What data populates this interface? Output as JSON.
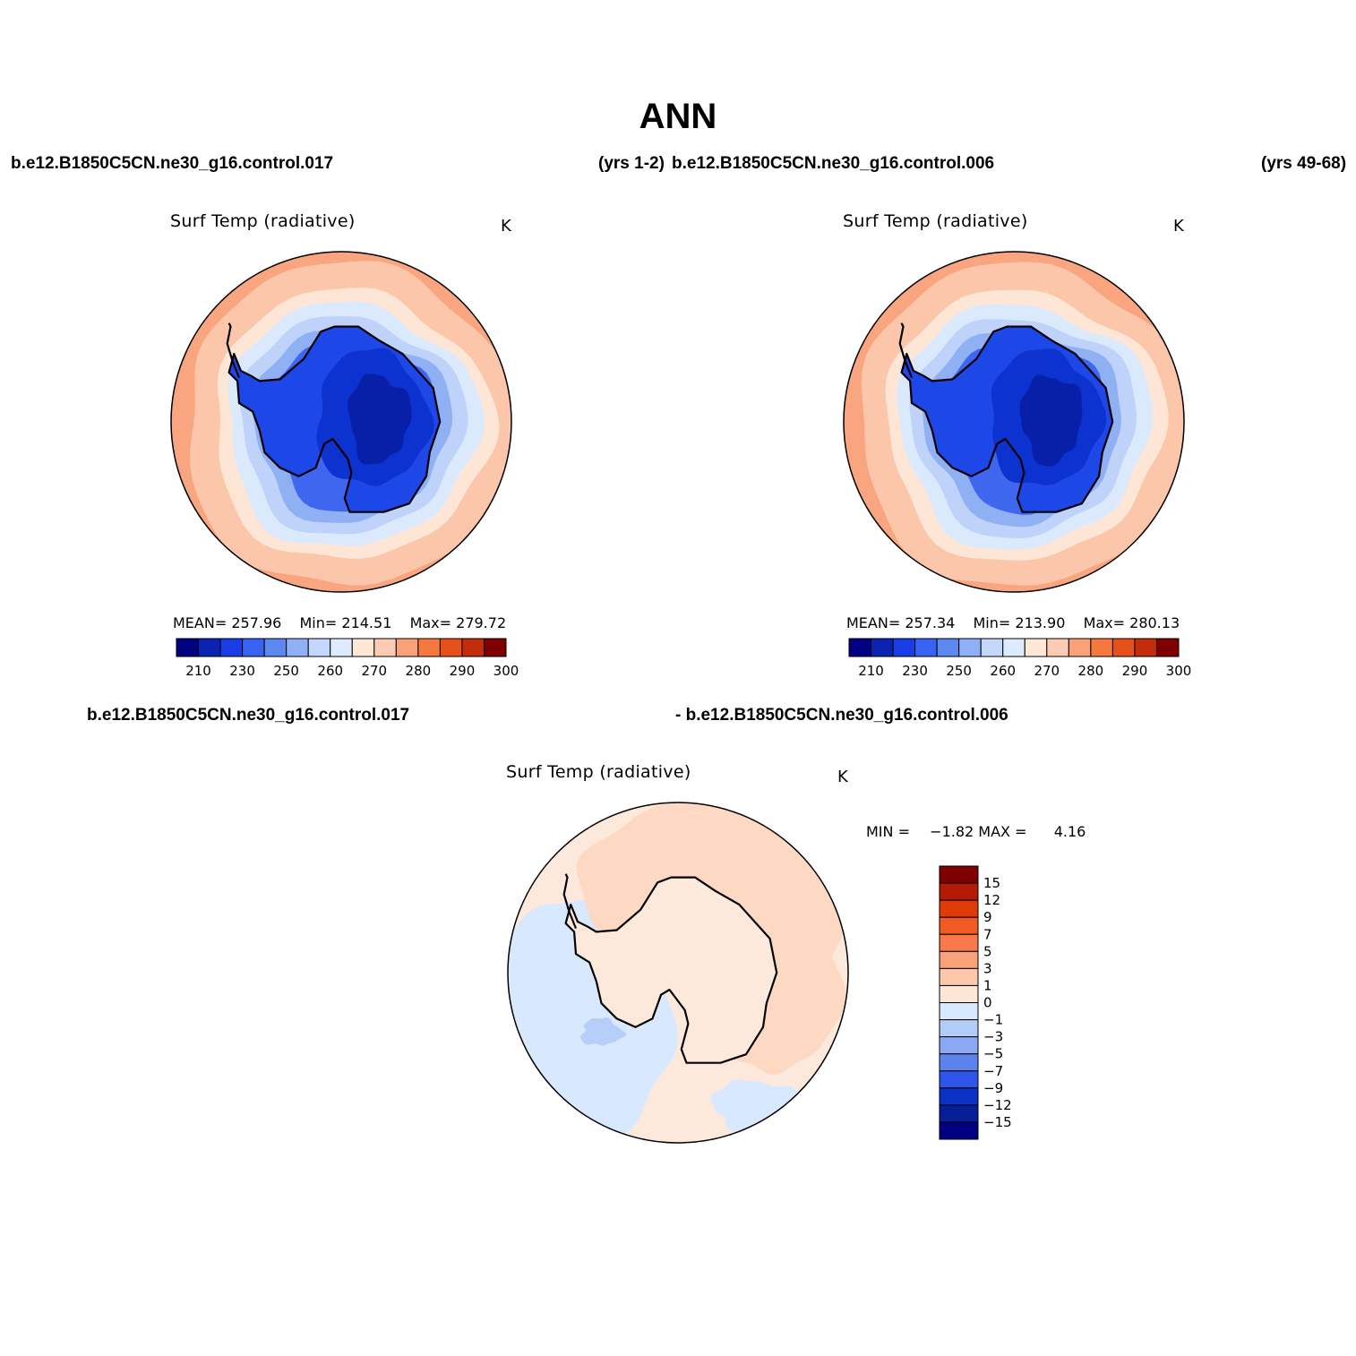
{
  "figure": {
    "title": "ANN",
    "case_left": "b.e12.B1850C5CN.ne30_g16.control.017",
    "years_left": "(yrs 1-2)",
    "case_right": "b.e12.B1850C5CN.ne30_g16.control.006",
    "years_right": "(yrs 49-68)",
    "diff_case_a": "b.e12.B1850C5CN.ne30_g16.control.017",
    "diff_case_b": "- b.e12.B1850C5CN.ne30_g16.control.006"
  },
  "panels": [
    {
      "variable": "Surf Temp (radiative)",
      "units": "K",
      "mean_label": "MEAN=",
      "mean": "257.96",
      "min_label": "Min=",
      "min": "214.51",
      "max_label": "Max=",
      "max": "279.72"
    },
    {
      "variable": "Surf Temp (radiative)",
      "units": "K",
      "mean_label": "MEAN=",
      "mean": "257.34",
      "min_label": "Min=",
      "min": "213.90",
      "max_label": "Max=",
      "max": "280.13"
    }
  ],
  "diff_panel": {
    "variable": "Surf Temp (radiative)",
    "units": "K",
    "min_label": "MIN =",
    "min": "−1.82",
    "max_label": "MAX =",
    "max": "4.16"
  },
  "colorbar_abs": {
    "levels": [
      "210",
      "230",
      "250",
      "260",
      "270",
      "280",
      "290",
      "300"
    ],
    "colors": [
      "#000080",
      "#0a23b0",
      "#1a3ee6",
      "#3763f0",
      "#5c88f0",
      "#8fb0f5",
      "#c3d6fb",
      "#dcebff",
      "#fde8d8",
      "#fbcbb3",
      "#f9a27a",
      "#f5783f",
      "#e8501a",
      "#c22d0b",
      "#7f0000"
    ]
  },
  "colorbar_diff": {
    "levels": [
      "15",
      "12",
      "9",
      "7",
      "5",
      "3",
      "1",
      "0",
      "−1",
      "−3",
      "−5",
      "−7",
      "−9",
      "−12",
      "−15"
    ],
    "colors": [
      "#7f0000",
      "#b31b05",
      "#df3a08",
      "#f15a22",
      "#f7794c",
      "#f9a27a",
      "#fcc8ac",
      "#fde6d5",
      "#d8e9ff",
      "#b2ccf8",
      "#8aa9f2",
      "#5c82ee",
      "#2f55e8",
      "#0a30c6",
      "#061f99",
      "#000080"
    ]
  },
  "colors": {
    "ocean_far": "#f9a680",
    "ocean_mid": "#fbc6aa",
    "ocean_near": "#fde6d5",
    "seaice_1": "#dbe9fd",
    "seaice_2": "#bfd3fa",
    "seaice_3": "#90b0f4",
    "coast": "#3f66ee",
    "ice_1": "#1e47e8",
    "ice_2": "#0c33d0",
    "ice_3": "#0820a8",
    "diff_warm": "#fdd8c3",
    "diff_neutral": "#fde9dc",
    "diff_cool": "#d8e9ff",
    "diff_cool2": "#b6cff8"
  }
}
